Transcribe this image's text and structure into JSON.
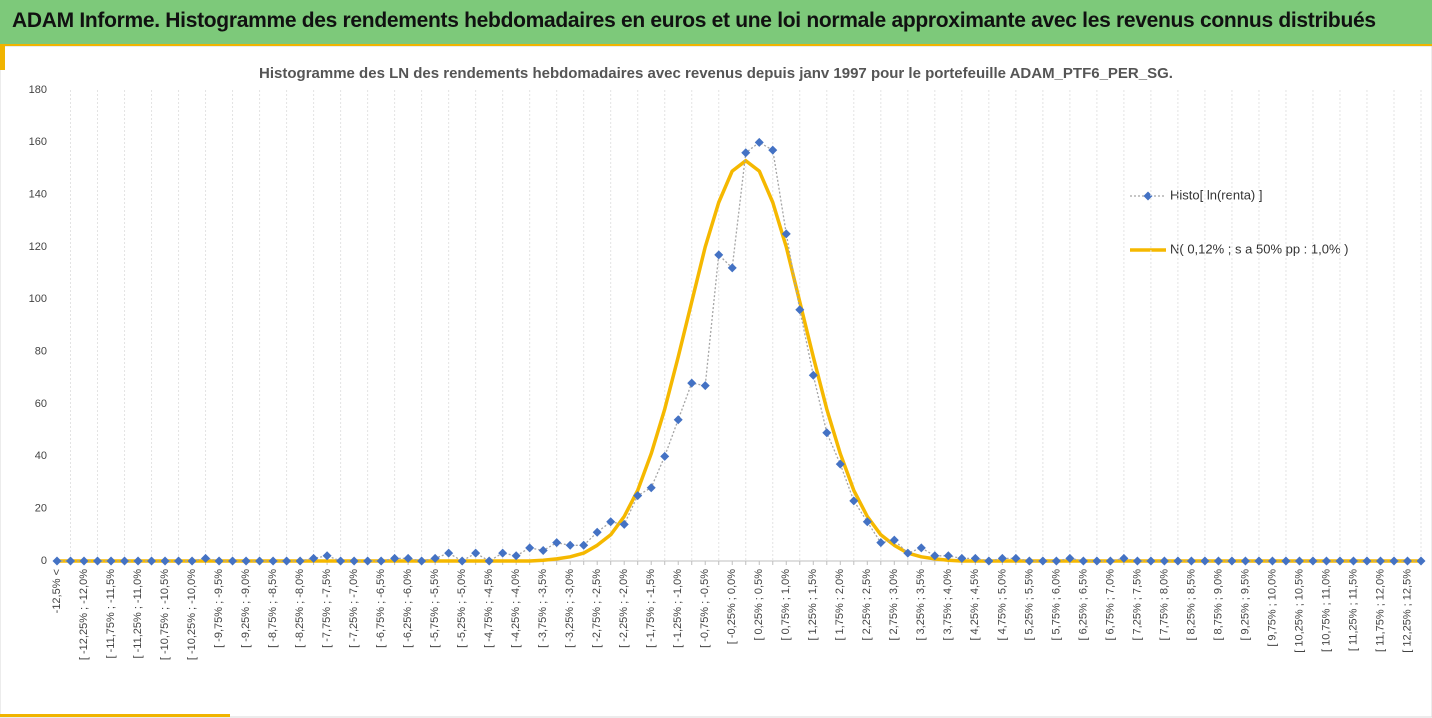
{
  "header": {
    "title": "ADAM Informe. Histogramme des rendements hebdomadaires en euros et une loi normale approximante avec les revenus connus distribués"
  },
  "chart_data": {
    "type": "line",
    "title": "Histogramme des LN des rendements hebdomadaires avec revenus depuis janv 1997 pour le portefeuille ADAM_PTF6_PER_SG.",
    "categories": [
      "-12,5% <",
      null,
      "[ -12,25% ; -12,0%",
      null,
      "[ -11,75% ; -11,5%",
      null,
      "[ -11,25% ; -11,0%",
      null,
      "[ -10,75% ; -10,5%",
      null,
      "[ -10,25% ; -10,0%",
      null,
      "[ -9,75% ; -9,5%",
      null,
      "[ -9,25% ; -9,0%",
      null,
      "[ -8,75% ; -8,5%",
      null,
      "[ -8,25% ; -8,0%",
      null,
      "[ -7,75% ; -7,5%",
      null,
      "[ -7,25% ; -7,0%",
      null,
      "[ -6,75% ; -6,5%",
      null,
      "[ -6,25% ; -6,0%",
      null,
      "[ -5,75% ; -5,5%",
      null,
      "[ -5,25% ; -5,0%",
      null,
      "[ -4,75% ; -4,5%",
      null,
      "[ -4,25% ; -4,0%",
      null,
      "[ -3,75% ; -3,5%",
      null,
      "[ -3,25% ; -3,0%",
      null,
      "[ -2,75% ; -2,5%",
      null,
      "[ -2,25% ; -2,0%",
      null,
      "[ -1,75% ; -1,5%",
      null,
      "[ -1,25% ; -1,0%",
      null,
      "[ -0,75% ; -0,5%",
      null,
      "[ -0,25% ; 0,0%",
      null,
      "[ 0,25% ; 0,5%",
      null,
      "[ 0,75% ; 1,0%",
      null,
      "[ 1,25% ; 1,5%",
      null,
      "[ 1,75% ; 2,0%",
      null,
      "[ 2,25% ; 2,5%",
      null,
      "[ 2,75% ; 3,0%",
      null,
      "[ 3,25% ; 3,5%",
      null,
      "[ 3,75% ; 4,0%",
      null,
      "[ 4,25% ; 4,5%",
      null,
      "[ 4,75% ; 5,0%",
      null,
      "[ 5,25% ; 5,5%",
      null,
      "[ 5,75% ; 6,0%",
      null,
      "[ 6,25% ; 6,5%",
      null,
      "[ 6,75% ; 7,0%",
      null,
      "[ 7,25% ; 7,5%",
      null,
      "[ 7,75% ; 8,0%",
      null,
      "[ 8,25% ; 8,5%",
      null,
      "[ 8,75% ; 9,0%",
      null,
      "[ 9,25% ; 9,5%",
      null,
      "[ 9,75% ; 10,0%",
      null,
      "[ 10,25% ; 10,5%",
      null,
      "[ 10,75% ; 11,0%",
      null,
      "[ 11,25% ; 11,5%",
      null,
      "[ 11,75% ; 12,0%",
      null,
      "[ 12,25% ; 12,5%",
      null
    ],
    "series": [
      {
        "name": "Histo[ ln(renta) ]",
        "color": "#4472c4",
        "line_color": "#a5a5a5",
        "values": [
          0,
          0,
          0,
          0,
          0,
          0,
          0,
          0,
          0,
          0,
          0,
          1,
          0,
          0,
          0,
          0,
          0,
          0,
          0,
          1,
          2,
          0,
          0,
          0,
          0,
          1,
          1,
          0,
          1,
          3,
          0,
          3,
          0,
          3,
          2,
          5,
          4,
          7,
          6,
          6,
          11,
          15,
          14,
          25,
          28,
          40,
          54,
          68,
          67,
          117,
          112,
          156,
          160,
          157,
          125,
          96,
          71,
          49,
          37,
          23,
          15,
          7,
          8,
          3,
          5,
          2,
          2,
          1,
          1,
          0,
          1,
          1,
          0,
          0,
          0,
          1,
          0,
          0,
          0,
          1,
          0,
          0,
          0,
          0,
          0,
          0,
          0,
          0,
          0,
          0,
          0,
          0,
          0,
          0,
          0,
          0,
          0,
          0,
          0,
          0,
          0,
          0
        ]
      },
      {
        "name": "N( 0,12% ; s a 50% pp : 1,0% )",
        "color": "#f5b800",
        "values": [
          0,
          0,
          0,
          0,
          0,
          0,
          0,
          0,
          0,
          0,
          0,
          0,
          0,
          0,
          0,
          0,
          0,
          0,
          0,
          0,
          0,
          0,
          0,
          0,
          0,
          0,
          0,
          0,
          0,
          0,
          0,
          0,
          0,
          0,
          0,
          0,
          0.3,
          0.8,
          1.6,
          3,
          6,
          10,
          17,
          27,
          41,
          58,
          78,
          99,
          120,
          137,
          149,
          153,
          149,
          137,
          120,
          99,
          78,
          58,
          41,
          27,
          17,
          10,
          6,
          3,
          1.6,
          0.8,
          0.3,
          0,
          0,
          0,
          0,
          0,
          0,
          0,
          0,
          0,
          0,
          0,
          0,
          0,
          0,
          0,
          0,
          0,
          0,
          0,
          0,
          0,
          0,
          0,
          0,
          0,
          0,
          0,
          0,
          0,
          0,
          0,
          0,
          0,
          0,
          0
        ]
      }
    ],
    "ylim": [
      0,
      180
    ],
    "yticks": [
      0,
      20,
      40,
      60,
      80,
      100,
      120,
      140,
      160,
      180
    ],
    "grid": true,
    "legend": "right"
  }
}
